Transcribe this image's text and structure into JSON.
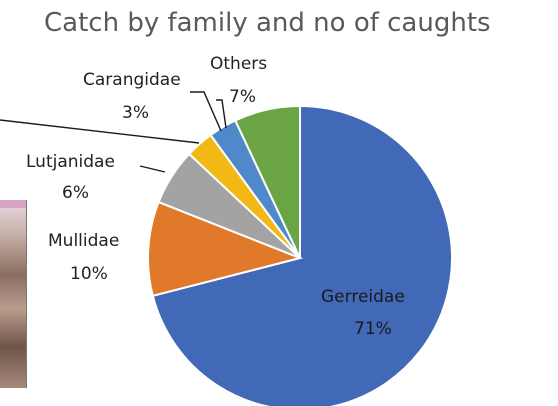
{
  "chart_data": {
    "type": "pie",
    "title": "Catch by family and no of caughts",
    "slices": [
      {
        "name": "Gerreidae",
        "value": 71,
        "label": "71%",
        "color": "#4169b8"
      },
      {
        "name": "Mullidae",
        "value": 10,
        "label": "10%",
        "color": "#e07a2a"
      },
      {
        "name": "Lutjanidae",
        "value": 6,
        "label": "6%",
        "color": "#a3a3a3"
      },
      {
        "name": "",
        "value": 3,
        "label": "",
        "color": "#f2b815"
      },
      {
        "name": "Carangidae",
        "value": 3,
        "label": "3%",
        "color": "#4f89c9"
      },
      {
        "name": "Others",
        "value": 7,
        "label": "7%",
        "color": "#6aa444"
      }
    ],
    "start": "top, clockwise"
  }
}
